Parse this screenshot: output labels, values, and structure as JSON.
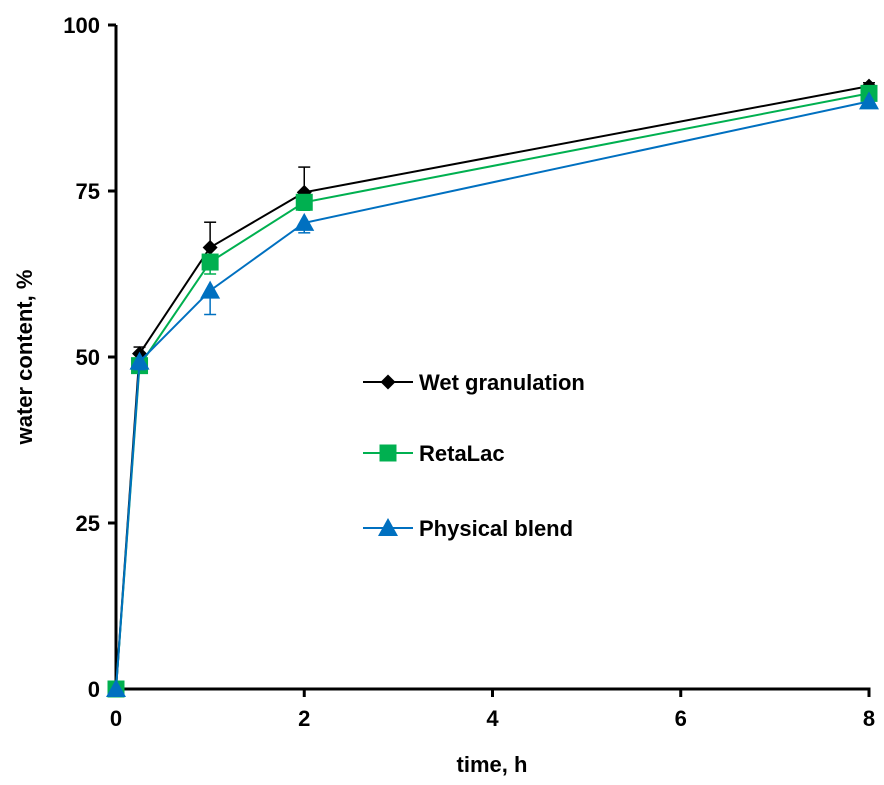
{
  "chart_data": {
    "type": "line",
    "xlabel": "time, h",
    "ylabel": "water content, %",
    "xlim": [
      0,
      8
    ],
    "ylim": [
      0,
      100
    ],
    "xticks": [
      0,
      2,
      4,
      6,
      8
    ],
    "yticks": [
      0,
      25,
      50,
      75,
      100
    ],
    "grid": false,
    "legend_position": "center-right",
    "x": [
      0,
      0.25,
      1,
      2,
      8
    ],
    "series": [
      {
        "name": "Wet granulation",
        "color": "#000000",
        "marker": "diamond",
        "values": [
          0,
          50.5,
          66.5,
          74.8,
          90.8
        ],
        "error": [
          0,
          1.0,
          3.8,
          3.8,
          0.5
        ]
      },
      {
        "name": "RetaLac",
        "color": "#00B050",
        "marker": "square",
        "values": [
          0,
          48.7,
          64.3,
          73.3,
          89.7
        ],
        "error": [
          0,
          0.6,
          1.8,
          1.2,
          0.5
        ]
      },
      {
        "name": "Physical blend",
        "color": "#0070C0",
        "marker": "triangle",
        "values": [
          0,
          49.3,
          60.0,
          70.2,
          88.5
        ],
        "error": [
          0,
          1.2,
          3.6,
          1.5,
          0.6
        ]
      }
    ]
  }
}
